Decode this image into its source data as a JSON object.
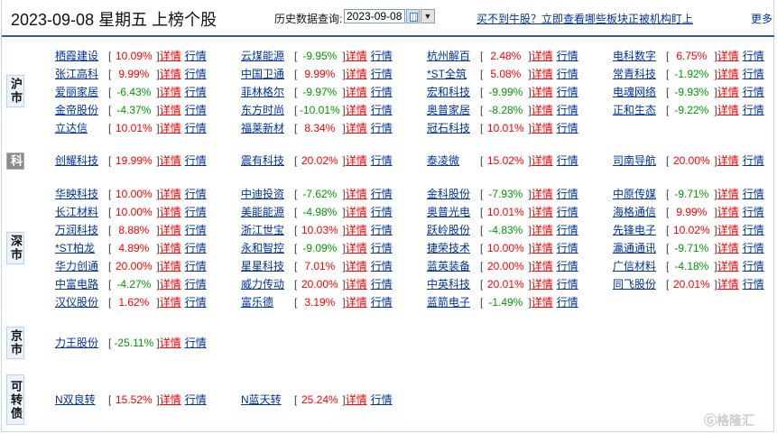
{
  "header": {
    "title": "2023-09-08 星期五 上榜个股",
    "history_label": "历史数据查询:",
    "date_value": "2023-09-08",
    "promo_link": "买不到牛股？立即查看哪些板块正被机构盯上",
    "more_link": "更多"
  },
  "labels": {
    "detail": "详情",
    "quote": "行情"
  },
  "colors": {
    "up": "#ff0000",
    "down": "#009900",
    "link": "#00349a",
    "header_rule": "#3a5a85"
  },
  "watermark": "格隆汇",
  "markets": [
    {
      "label": "沪市",
      "rows": [
        [
          {
            "name": "栖霞建设",
            "pct": "10.09%"
          },
          {
            "name": "云煤能源",
            "pct": "-9.95%"
          },
          {
            "name": "杭州解百",
            "pct": "2.48%"
          },
          {
            "name": "电科数字",
            "pct": "6.75%"
          }
        ],
        [
          {
            "name": "张江高科",
            "pct": "9.99%"
          },
          {
            "name": "中国卫通",
            "pct": "9.99%"
          },
          {
            "name": "*ST全筑",
            "pct": "5.08%"
          },
          {
            "name": "常青科技",
            "pct": "-1.92%"
          }
        ],
        [
          {
            "name": "爱丽家居",
            "pct": "-6.43%"
          },
          {
            "name": "菲林格尔",
            "pct": "-9.97%"
          },
          {
            "name": "宏和科技",
            "pct": "-9.99%"
          },
          {
            "name": "电魂网络",
            "pct": "-9.93%"
          }
        ],
        [
          {
            "name": "金帝股份",
            "pct": "-4.37%"
          },
          {
            "name": "东方时尚",
            "pct": "-10.01%"
          },
          {
            "name": "奥普家居",
            "pct": "-8.28%"
          },
          {
            "name": "正和生态",
            "pct": "-9.22%"
          }
        ],
        [
          {
            "name": "立达信",
            "pct": "10.01%"
          },
          {
            "name": "福莱新材",
            "pct": "8.34%"
          },
          {
            "name": "冠石科技",
            "pct": "10.01%"
          }
        ]
      ]
    },
    {
      "label": "科",
      "rows": [
        [
          {
            "name": "创耀科技",
            "pct": "19.99%"
          },
          {
            "name": "震有科技",
            "pct": "20.02%"
          },
          {
            "name": "泰凌微",
            "pct": "15.02%"
          },
          {
            "name": "司南导航",
            "pct": "20.00%"
          }
        ]
      ]
    },
    {
      "label": "深市",
      "rows": [
        [
          {
            "name": "华映科技",
            "pct": "10.00%"
          },
          {
            "name": "中迪投资",
            "pct": "-7.62%"
          },
          {
            "name": "金科股份",
            "pct": "-7.93%"
          },
          {
            "name": "中原传媒",
            "pct": "-9.71%"
          }
        ],
        [
          {
            "name": "长江材料",
            "pct": "10.00%"
          },
          {
            "name": "美能能源",
            "pct": "-4.98%"
          },
          {
            "name": "奥普光电",
            "pct": "10.01%"
          },
          {
            "name": "海格通信",
            "pct": "9.99%"
          }
        ],
        [
          {
            "name": "万润科技",
            "pct": "8.88%"
          },
          {
            "name": "浙江世宝",
            "pct": "10.03%"
          },
          {
            "name": "跃岭股份",
            "pct": "-4.83%"
          },
          {
            "name": "先锋电子",
            "pct": "10.02%"
          }
        ],
        [
          {
            "name": "*ST柏龙",
            "pct": "4.89%"
          },
          {
            "name": "永和智控",
            "pct": "-9.09%"
          },
          {
            "name": "捷荣技术",
            "pct": "10.00%"
          },
          {
            "name": "瀛通通讯",
            "pct": "-9.71%"
          }
        ],
        [
          {
            "name": "华力创通",
            "pct": "20.00%"
          },
          {
            "name": "星星科技",
            "pct": "7.01%"
          },
          {
            "name": "蓝英装备",
            "pct": "20.00%"
          },
          {
            "name": "广信材料",
            "pct": "-4.18%"
          }
        ],
        [
          {
            "name": "中富电路",
            "pct": "-4.27%"
          },
          {
            "name": "威力传动",
            "pct": "20.00%"
          },
          {
            "name": "中英科技",
            "pct": "20.01%"
          },
          {
            "name": "同飞股份",
            "pct": "20.01%"
          }
        ],
        [
          {
            "name": "汉仪股份",
            "pct": "1.62%"
          },
          {
            "name": "富乐德",
            "pct": "3.19%"
          },
          {
            "name": "蓝箭电子",
            "pct": "-1.49%"
          }
        ]
      ]
    },
    {
      "label": "京市",
      "rows": [
        [
          {
            "name": "力王股份",
            "pct": "-25.11%"
          }
        ]
      ]
    },
    {
      "label": "可转债",
      "rows": [
        [
          {
            "name": "N双良转",
            "pct": "15.52%"
          },
          {
            "name": "N蓝天转",
            "pct": "25.24%"
          }
        ]
      ]
    }
  ]
}
